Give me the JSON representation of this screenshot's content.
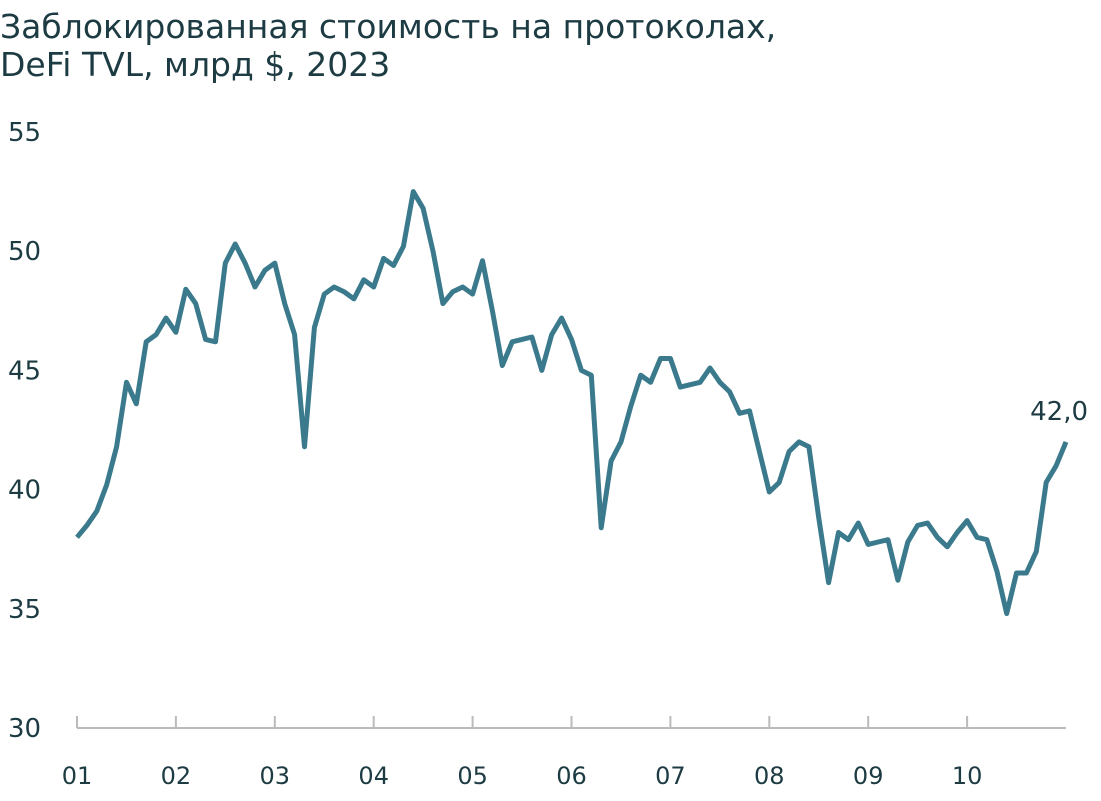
{
  "chart_data": {
    "type": "line",
    "title": [
      "Заблокированная стоимость на протоколах,",
      "DeFi TVL, млрд $, 2023"
    ],
    "categories": [
      "01",
      null,
      null,
      null,
      null,
      null,
      null,
      null,
      null,
      null,
      "02",
      null,
      null,
      null,
      null,
      null,
      null,
      null,
      null,
      null,
      "03",
      null,
      null,
      null,
      null,
      null,
      null,
      null,
      null,
      null,
      "04",
      null,
      null,
      null,
      null,
      null,
      null,
      null,
      null,
      null,
      "05",
      null,
      null,
      null,
      null,
      null,
      null,
      null,
      null,
      null,
      "06",
      null,
      null,
      null,
      null,
      null,
      null,
      null,
      null,
      null,
      "07",
      null,
      null,
      null,
      null,
      null,
      null,
      null,
      null,
      null,
      "08",
      null,
      null,
      null,
      null,
      null,
      null,
      null,
      null,
      null,
      "09",
      null,
      null,
      null,
      null,
      null,
      null,
      null,
      null,
      null,
      "10",
      null,
      null,
      null,
      null,
      null,
      null,
      null,
      null,
      null,
      null
    ],
    "series": [
      {
        "name": "DeFi TVL",
        "color": "#3a7a8c",
        "values": [
          38.0,
          38.5,
          39.1,
          40.2,
          41.8,
          44.5,
          43.6,
          46.2,
          46.5,
          47.2,
          46.6,
          48.4,
          47.8,
          46.3,
          46.2,
          49.5,
          50.3,
          49.5,
          48.5,
          49.2,
          49.5,
          47.8,
          46.5,
          41.8,
          46.8,
          48.2,
          48.5,
          48.3,
          48.0,
          48.8,
          48.5,
          49.7,
          49.4,
          50.2,
          52.5,
          51.8,
          50.0,
          47.8,
          48.3,
          48.5,
          48.2,
          49.6,
          47.5,
          45.2,
          46.2,
          46.3,
          46.4,
          45.0,
          46.5,
          47.2,
          46.3,
          45.0,
          44.8,
          38.4,
          41.2,
          42.0,
          43.5,
          44.8,
          44.5,
          45.5,
          45.5,
          44.3,
          44.4,
          44.5,
          45.1,
          44.5,
          44.1,
          43.2,
          43.3,
          41.6,
          39.9,
          40.3,
          41.6,
          42.0,
          41.8,
          38.8,
          36.1,
          38.2,
          37.9,
          38.6,
          37.7,
          37.8,
          37.9,
          36.2,
          37.8,
          38.5,
          38.6,
          38.0,
          37.6,
          38.2,
          38.7,
          38.0,
          37.9,
          36.6,
          34.8,
          36.5,
          36.5,
          37.4,
          40.3,
          41.0,
          42.0
        ],
        "value_labels": [
          null,
          null,
          null,
          null,
          null,
          null,
          null,
          null,
          null,
          null,
          null,
          null,
          null,
          null,
          null,
          null,
          null,
          null,
          null,
          null,
          null,
          null,
          null,
          null,
          null,
          null,
          null,
          null,
          null,
          null,
          null,
          null,
          null,
          null,
          null,
          null,
          null,
          null,
          null,
          null,
          null,
          null,
          null,
          null,
          null,
          null,
          null,
          null,
          null,
          null,
          null,
          null,
          null,
          null,
          null,
          null,
          null,
          null,
          null,
          null,
          null,
          null,
          null,
          null,
          null,
          null,
          null,
          null,
          null,
          null,
          null,
          null,
          null,
          null,
          null,
          null,
          null,
          null,
          null,
          null,
          null,
          null,
          null,
          null,
          null,
          null,
          null,
          null,
          null,
          null,
          null,
          null,
          null,
          null,
          null,
          null,
          null,
          null,
          null,
          null,
          "42,0"
        ]
      }
    ],
    "ylim": [
      30,
      55
    ],
    "yticks": [
      30,
      35,
      40,
      45,
      50,
      55
    ],
    "grid": false
  }
}
